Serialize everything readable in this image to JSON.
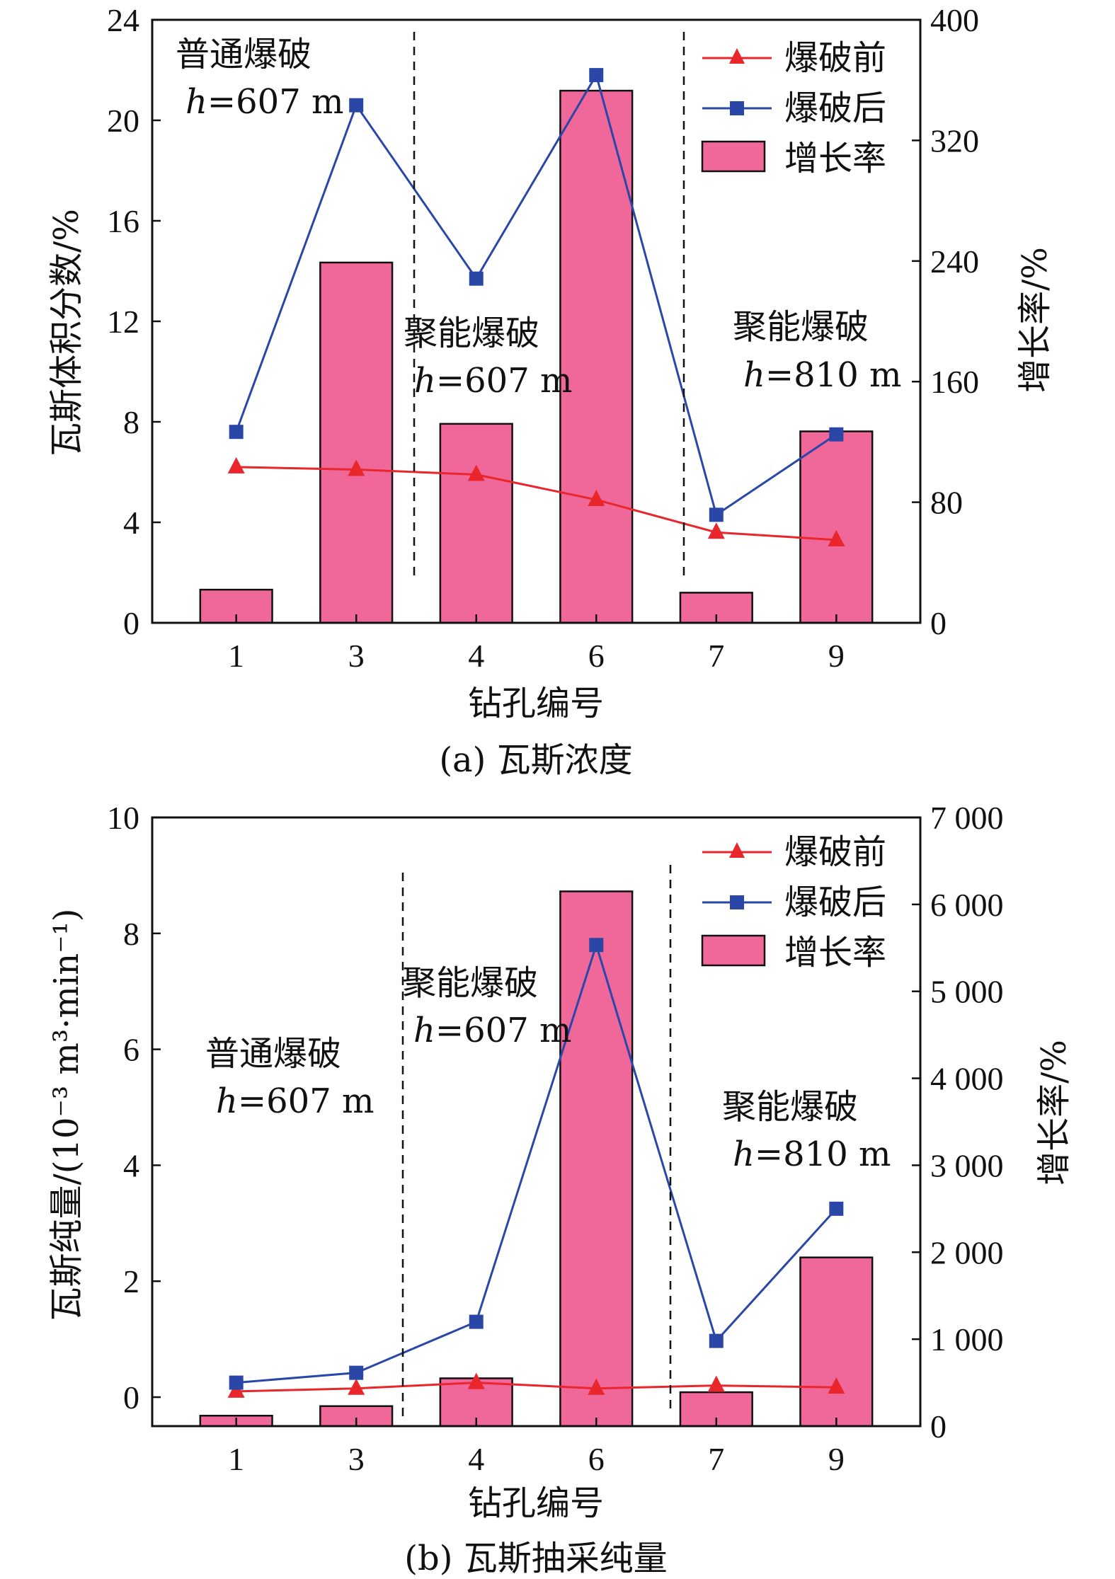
{
  "legend": {
    "before": "爆破前",
    "after": "爆破后",
    "growth": "增长率"
  },
  "colors": {
    "before": "#e8262b",
    "after": "#2a47a8",
    "bar": "#f0679a"
  },
  "chart_data": [
    {
      "type": "bar",
      "caption": "(a) 瓦斯浓度",
      "xlabel": "钻孔编号",
      "ylabel": "瓦斯体积分数/%",
      "y2label": "增长率/%",
      "categories": [
        "1",
        "3",
        "4",
        "6",
        "7",
        "9"
      ],
      "ylim": [
        0,
        24
      ],
      "y2lim": [
        0,
        400
      ],
      "yticks": [
        "0",
        "4",
        "8",
        "12",
        "16",
        "20",
        "24"
      ],
      "y2ticks": [
        "0",
        "80",
        "160",
        "240",
        "320",
        "400"
      ],
      "series": [
        {
          "name": "爆破前",
          "type": "line",
          "axis": "left",
          "values": [
            6.2,
            6.1,
            5.9,
            4.9,
            3.6,
            3.3
          ]
        },
        {
          "name": "爆破后",
          "type": "line",
          "axis": "left",
          "values": [
            7.6,
            20.6,
            13.7,
            21.8,
            4.3,
            7.5
          ]
        },
        {
          "name": "增长率",
          "type": "bar",
          "axis": "right",
          "values": [
            22,
            239,
            132,
            353,
            20,
            127
          ]
        }
      ],
      "annotations": [
        {
          "line1": "普通爆破",
          "h": "h",
          "eq": "=607 m"
        },
        {
          "line1": "聚能爆破",
          "h": "h",
          "eq": "=607 m"
        },
        {
          "line1": "聚能爆破",
          "h": "h",
          "eq": "=810 m"
        }
      ]
    },
    {
      "type": "bar",
      "caption": "(b) 瓦斯抽采纯量",
      "xlabel": "钻孔编号",
      "ylabel": "瓦斯纯量/(10⁻³ m³·min⁻¹)",
      "y2label": "增长率/%",
      "categories": [
        "1",
        "3",
        "4",
        "6",
        "7",
        "9"
      ],
      "ylim": [
        -0.5,
        10
      ],
      "y2lim": [
        0,
        7000
      ],
      "yticks": [
        "0",
        "2",
        "4",
        "6",
        "8",
        "10"
      ],
      "y2ticks": [
        "0",
        "1 000",
        "2 000",
        "3 000",
        "4 000",
        "5 000",
        "6 000",
        "7 000"
      ],
      "series": [
        {
          "name": "爆破前",
          "type": "line",
          "axis": "left",
          "values": [
            0.1,
            0.15,
            0.25,
            0.15,
            0.2,
            0.17
          ]
        },
        {
          "name": "爆破后",
          "type": "line",
          "axis": "left",
          "values": [
            0.25,
            0.42,
            1.3,
            7.8,
            0.97,
            3.25
          ]
        },
        {
          "name": "增长率",
          "type": "bar",
          "axis": "right",
          "values": [
            120,
            230,
            550,
            6150,
            390,
            1940
          ]
        }
      ],
      "annotations": [
        {
          "line1": "普通爆破",
          "h": "h",
          "eq": "=607 m"
        },
        {
          "line1": "聚能爆破",
          "h": "h",
          "eq": "=607 m"
        },
        {
          "line1": "聚能爆破",
          "h": "h",
          "eq": "=810 m"
        }
      ]
    }
  ]
}
